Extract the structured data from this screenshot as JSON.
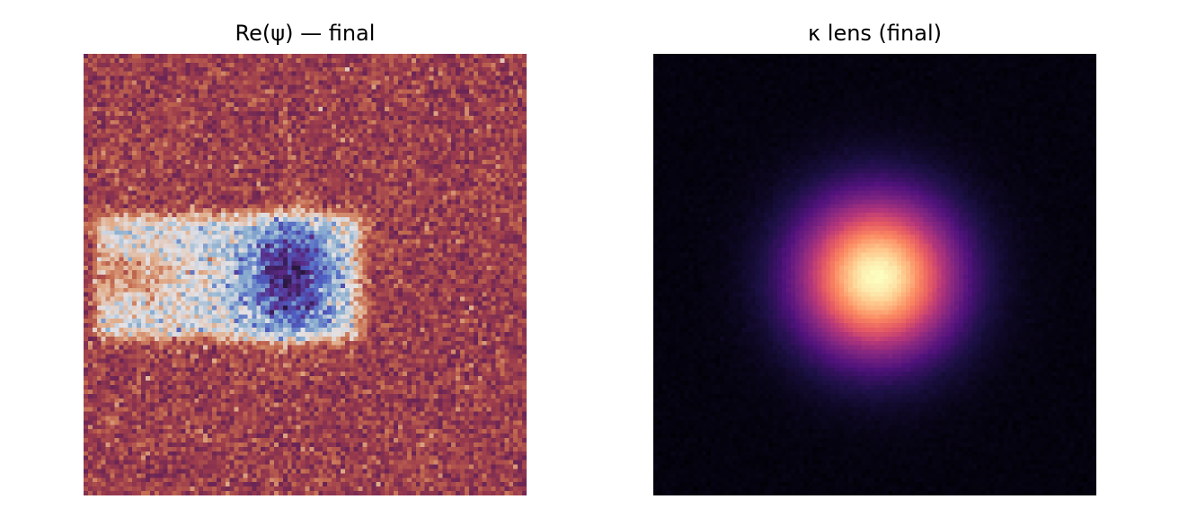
{
  "chart_data": [
    {
      "type": "heatmap",
      "title": "Re(ψ) — final",
      "xlabel": "",
      "ylabel": "",
      "grid": false,
      "axes": "off",
      "colormap": "twilight_shifted",
      "colormap_stops": [
        "#2a1840",
        "#5b2a86",
        "#4d5fc2",
        "#8cb0d0",
        "#e4e2e6",
        "#e1ad8a",
        "#c36a4f",
        "#9b3b4c",
        "#6b2555"
      ],
      "description_values": {
        "background_level": 0.87,
        "bright_band_level": 0.5,
        "dark_core_level": 0.08
      }
    },
    {
      "type": "heatmap",
      "title": "κ lens (final)",
      "xlabel": "",
      "ylabel": "",
      "grid": false,
      "axes": "off",
      "colormap": "magma",
      "colormap_stops": [
        "#000004",
        "#1c1044",
        "#4f127b",
        "#812581",
        "#b5367a",
        "#e55964",
        "#fb8761",
        "#fec287",
        "#fcfdbf"
      ],
      "description_values": {
        "peak_level": 1.0,
        "background_level": 0.02
      }
    }
  ]
}
